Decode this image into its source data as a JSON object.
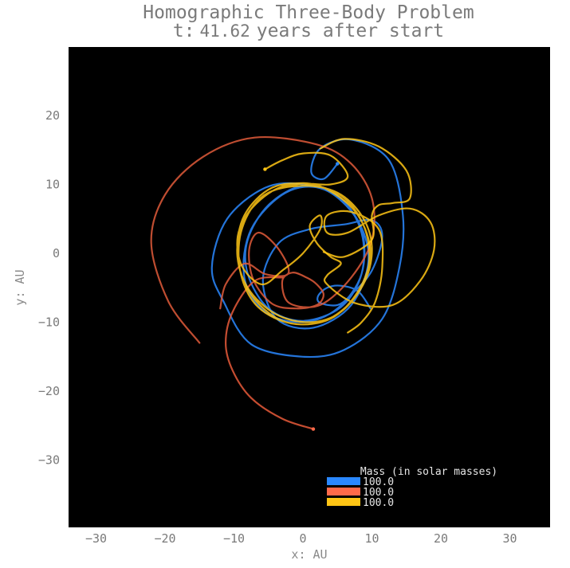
{
  "chart_data": {
    "type": "line",
    "title": "Homographic Three-Body Problem",
    "subtitle_prefix": "t:",
    "subtitle_value": "41.62",
    "subtitle_suffix": "years after start",
    "xlabel": "x: AU",
    "ylabel": "y: AU",
    "xlim": [
      -34,
      36
    ],
    "ylim": [
      -40,
      30
    ],
    "xticks": [
      -30,
      -20,
      -10,
      0,
      10,
      20,
      30
    ],
    "yticks": [
      -30,
      -20,
      -10,
      0,
      10,
      20
    ],
    "xtick_labels": [
      "−30",
      "−20",
      "−10",
      "0",
      "10",
      "20",
      "30"
    ],
    "ytick_labels": [
      "−30",
      "−20",
      "−10",
      "0",
      "10",
      "20"
    ],
    "background": "#000000",
    "grid": false,
    "legend": {
      "title": "Mass (in solar masses)",
      "placement": "bottom-right",
      "entries": [
        {
          "label": "100.0",
          "color": "#2a88ff"
        },
        {
          "label": "100.0",
          "color": "#ff6a4a"
        },
        {
          "label": "100.0",
          "color": "#ffc515"
        }
      ]
    },
    "series": [
      {
        "color": "#2a88ff",
        "points": [
          [
            5,
            13
          ],
          [
            3,
            10.8
          ],
          [
            1.2,
            11.8
          ],
          [
            2.5,
            15.2
          ],
          [
            7,
            16.5
          ],
          [
            12.5,
            13.5
          ],
          [
            14.5,
            5.5
          ],
          [
            14,
            -2
          ],
          [
            11.5,
            -9.5
          ],
          [
            6,
            -14
          ],
          [
            0,
            -15
          ],
          [
            -7.5,
            -13.2
          ],
          [
            -11.5,
            -7
          ],
          [
            -13.2,
            -2
          ],
          [
            -11,
            5
          ],
          [
            -5.5,
            9.5
          ],
          [
            0,
            10
          ],
          [
            5.5,
            8
          ],
          [
            8.5,
            3
          ],
          [
            8.5,
            -3
          ],
          [
            5.5,
            -7.8
          ],
          [
            0,
            -9.8
          ],
          [
            -5,
            -8
          ],
          [
            -8,
            -3
          ],
          [
            -8,
            2
          ],
          [
            -5,
            7
          ],
          [
            0,
            9.8
          ],
          [
            5,
            8.2
          ],
          [
            8.5,
            3.5
          ],
          [
            8.5,
            -3
          ],
          [
            5,
            -8
          ],
          [
            0,
            -10
          ],
          [
            -5.5,
            -8.5
          ],
          [
            -8.5,
            -3.5
          ],
          [
            -7.5,
            3.5
          ],
          [
            -2.5,
            8.8
          ],
          [
            3,
            9.3
          ],
          [
            7.8,
            5
          ],
          [
            9.5,
            -1
          ],
          [
            7,
            -7.5
          ],
          [
            1.5,
            -10.8
          ],
          [
            -3.8,
            -9.5
          ],
          [
            -5.8,
            -3.8
          ],
          [
            -3.5,
            1.5
          ],
          [
            1,
            3.5
          ],
          [
            6,
            4.2
          ],
          [
            10,
            4.8
          ],
          [
            11.5,
            2.5
          ],
          [
            10,
            -2.5
          ],
          [
            7,
            -6
          ],
          [
            5,
            -7.5
          ],
          [
            2.5,
            -7.2
          ],
          [
            2.2,
            -6.2
          ],
          [
            3.5,
            -5
          ],
          [
            5.5,
            -4.7
          ],
          [
            8,
            -5.5
          ],
          [
            9.8,
            -8
          ]
        ]
      },
      {
        "color": "#e05a3a",
        "points": [
          [
            -15,
            -13
          ],
          [
            -19.5,
            -7
          ],
          [
            -22,
            1.5
          ],
          [
            -20,
            8.5
          ],
          [
            -14.5,
            14
          ],
          [
            -7,
            16.8
          ],
          [
            2,
            15.8
          ],
          [
            7,
            13
          ],
          [
            10,
            8
          ],
          [
            10,
            2
          ],
          [
            7,
            -3.5
          ],
          [
            2.5,
            -7.5
          ],
          [
            -2,
            -7.2
          ],
          [
            -3,
            -4
          ],
          [
            -1.5,
            -2.8
          ],
          [
            0.5,
            -3.5
          ],
          [
            2,
            -4.5
          ],
          [
            3,
            -6
          ],
          [
            2,
            -7.5
          ],
          [
            -1,
            -8
          ],
          [
            -4.5,
            -7.3
          ],
          [
            -7.2,
            -3.8
          ],
          [
            -7.8,
            0.5
          ],
          [
            -6.5,
            3
          ],
          [
            -4,
            1.2
          ],
          [
            -2.2,
            -1.8
          ],
          [
            -2.5,
            -3.2
          ],
          [
            -5.5,
            -3
          ],
          [
            -8.5,
            -1.5
          ],
          [
            -11.2,
            -4.5
          ],
          [
            -12,
            -8
          ]
        ]
      },
      {
        "color": "#e85a3a",
        "points": [
          [
            1.5,
            -25.5
          ],
          [
            -3,
            -24
          ],
          [
            -7.5,
            -21
          ],
          [
            -10.2,
            -17
          ],
          [
            -11.2,
            -13
          ],
          [
            -10.2,
            -8.5
          ],
          [
            -7,
            -4
          ],
          [
            -3,
            -3.5
          ]
        ]
      },
      {
        "color": "#ffc515",
        "points": [
          [
            -5.5,
            12.2
          ],
          [
            -3,
            13.5
          ],
          [
            0,
            14.5
          ],
          [
            4,
            14.2
          ],
          [
            6.5,
            11.2
          ],
          [
            4,
            10
          ],
          [
            -1,
            10
          ],
          [
            -6.2,
            8
          ],
          [
            -9,
            3
          ],
          [
            -9,
            -3
          ],
          [
            -6.5,
            -7.8
          ],
          [
            -1.5,
            -10.2
          ],
          [
            4,
            -9.5
          ],
          [
            8,
            -5.5
          ],
          [
            9.8,
            0
          ],
          [
            8,
            5.5
          ],
          [
            4,
            9
          ],
          [
            0,
            10.2
          ],
          [
            -4.5,
            9
          ],
          [
            -8.5,
            5
          ],
          [
            -9.5,
            -0.5
          ],
          [
            -7.5,
            -6
          ],
          [
            -3,
            -9.8
          ],
          [
            2.5,
            -10
          ],
          [
            7,
            -7
          ],
          [
            9.5,
            -2
          ],
          [
            9,
            3.5
          ],
          [
            6,
            8
          ],
          [
            1,
            10
          ],
          [
            -4.5,
            9.5
          ],
          [
            -8.5,
            5.5
          ],
          [
            -9.5,
            0
          ],
          [
            -8,
            -5
          ],
          [
            -4,
            -8.8
          ],
          [
            1,
            -10
          ],
          [
            5.5,
            -8.5
          ],
          [
            9,
            -4
          ],
          [
            10,
            1
          ],
          [
            8.5,
            5.5
          ],
          [
            5,
            8.8
          ],
          [
            0,
            9.8
          ],
          [
            -5.5,
            8.5
          ],
          [
            -9.2,
            3.5
          ],
          [
            -9,
            -1.5
          ],
          [
            -6,
            -4.5
          ],
          [
            -3,
            -2.5
          ],
          [
            0,
            0
          ],
          [
            2.5,
            3.5
          ],
          [
            2.5,
            5.5
          ],
          [
            1,
            4
          ],
          [
            2,
            1.5
          ],
          [
            4,
            -0.5
          ],
          [
            5.5,
            -1.5
          ],
          [
            3.5,
            -3.2
          ],
          [
            3.5,
            -4.5
          ],
          [
            7.5,
            -7.2
          ],
          [
            13,
            -7.5
          ],
          [
            17,
            -4
          ],
          [
            19,
            0.5
          ],
          [
            18.5,
            4.5
          ],
          [
            15.5,
            6.5
          ],
          [
            11,
            5.5
          ],
          [
            6.5,
            3
          ],
          [
            3.5,
            3
          ],
          [
            3.5,
            5.5
          ],
          [
            7,
            6
          ],
          [
            11,
            3.5
          ],
          [
            11.5,
            -2
          ],
          [
            10.5,
            -7
          ],
          [
            8.5,
            -10
          ],
          [
            6.5,
            -11.5
          ]
        ]
      },
      {
        "color": "#ffc515",
        "points": [
          [
            2.5,
            15.2
          ],
          [
            6,
            16.6
          ],
          [
            11,
            15.5
          ],
          [
            15,
            12
          ],
          [
            15.5,
            8
          ],
          [
            13,
            7.3
          ],
          [
            11,
            7
          ],
          [
            10,
            5.5
          ],
          [
            10,
            2
          ],
          [
            6,
            -0.5
          ],
          [
            3,
            0.2
          ]
        ]
      }
    ],
    "markers": [
      {
        "x": 5,
        "y": 13,
        "color": "#2a88ff"
      },
      {
        "x": 1.5,
        "y": -25.5,
        "color": "#ff6a4a"
      },
      {
        "x": -5.5,
        "y": 12.2,
        "color": "#ffc515"
      }
    ]
  }
}
